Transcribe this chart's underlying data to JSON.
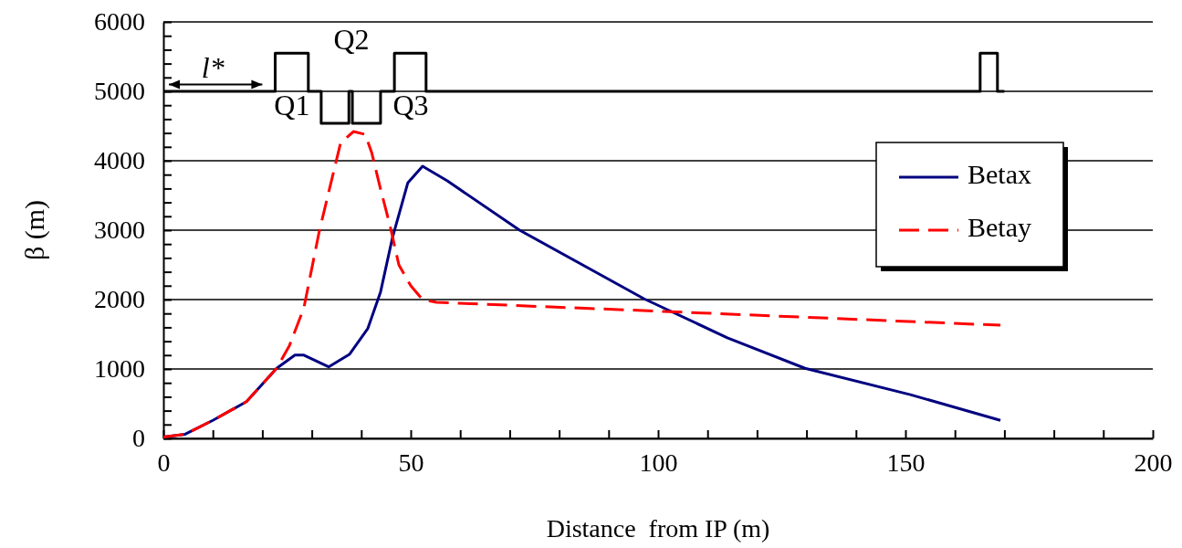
{
  "chart_data": {
    "type": "line",
    "xlabel": "Distance  from IP (m)",
    "ylabel": "β (m)",
    "xlim": [
      0,
      200
    ],
    "ylim": [
      0,
      6000
    ],
    "xticks": [
      0,
      {
        "value": 10,
        "label": null
      },
      {
        "value": 20,
        "label": null
      },
      {
        "value": 30,
        "label": null
      },
      {
        "value": 40,
        "label": null
      },
      50,
      {
        "value": 60,
        "label": null
      },
      {
        "value": 70,
        "label": null
      },
      {
        "value": 80,
        "label": null
      },
      {
        "value": 90,
        "label": null
      },
      100,
      {
        "value": 110,
        "label": null
      },
      {
        "value": 120,
        "label": null
      },
      {
        "value": 130,
        "label": null
      },
      {
        "value": 140,
        "label": null
      },
      150,
      {
        "value": 160,
        "label": null
      },
      {
        "value": 170,
        "label": null
      },
      {
        "value": 180,
        "label": null
      },
      {
        "value": 190,
        "label": null
      },
      200
    ],
    "yticks": [
      0,
      {
        "value": 200,
        "label": null
      },
      {
        "value": 400,
        "label": null
      },
      {
        "value": 600,
        "label": null
      },
      {
        "value": 800,
        "label": null
      },
      1000,
      {
        "value": 1200,
        "label": null
      },
      {
        "value": 1400,
        "label": null
      },
      {
        "value": 1600,
        "label": null
      },
      {
        "value": 1800,
        "label": null
      },
      2000,
      {
        "value": 2200,
        "label": null
      },
      {
        "value": 2400,
        "label": null
      },
      {
        "value": 2600,
        "label": null
      },
      {
        "value": 2800,
        "label": null
      },
      3000,
      {
        "value": 3200,
        "label": null
      },
      {
        "value": 3400,
        "label": null
      },
      {
        "value": 3600,
        "label": null
      },
      {
        "value": 3800,
        "label": null
      },
      4000,
      {
        "value": 4200,
        "label": null
      },
      {
        "value": 4400,
        "label": null
      },
      {
        "value": 4600,
        "label": null
      },
      {
        "value": 4800,
        "label": null
      },
      5000,
      {
        "value": 5200,
        "label": null
      },
      {
        "value": 5400,
        "label": null
      },
      {
        "value": 5600,
        "label": null
      },
      {
        "value": 5800,
        "label": null
      },
      6000
    ],
    "grid": "y",
    "legend": "top right",
    "marker": "none",
    "series": [
      {
        "name": "Betax",
        "color": "#000080",
        "line_style": "solid",
        "x": [
          0,
          4.4,
          10,
          16.8,
          22.9,
          26.6,
          28.4,
          33.4,
          37.6,
          41.3,
          43.9,
          46.3,
          49.4,
          52.4,
          57.4,
          72,
          97.2,
          114,
          129.7,
          151,
          169.2
        ],
        "values": [
          20,
          60,
          260,
          530,
          1010,
          1200,
          1200,
          1030,
          1210,
          1580,
          2110,
          2890,
          3680,
          3920,
          3710,
          3000,
          2010,
          1450,
          1010,
          630,
          260
        ]
      },
      {
        "name": "Betay",
        "color": "#ff0000",
        "line_style": "dashed",
        "x": [
          0,
          4.4,
          10,
          16.8,
          22.9,
          25.5,
          28.4,
          31.5,
          34,
          35.8,
          38.4,
          40.8,
          42.1,
          43.9,
          45.8,
          47.6,
          50,
          52.4,
          55.2,
          101,
          169.2
        ],
        "values": [
          20,
          60,
          260,
          530,
          1010,
          1340,
          1880,
          2980,
          3720,
          4250,
          4420,
          4380,
          4120,
          3590,
          3070,
          2500,
          2200,
          2000,
          1960,
          1830,
          1630
        ]
      },
      {
        "color": "#000000",
        "line_style": "solid",
        "x": [
          0,
          22.6,
          22.6,
          29.3,
          29.3,
          31.9,
          31.9,
          37.5,
          37.5,
          38.2,
          38.2,
          43.9,
          43.9,
          46.7,
          46.7,
          53.1,
          53.1,
          165.1,
          165.1,
          168.6,
          168.6,
          170
        ],
        "values": [
          5000,
          5000,
          5550,
          5550,
          5000,
          5000,
          4540,
          4540,
          5000,
          5000,
          4540,
          4540,
          5000,
          5000,
          5550,
          5550,
          5000,
          5000,
          5550,
          5550,
          5000,
          5000
        ]
      }
    ],
    "annotations": [
      "l*",
      "Q1",
      "Q2",
      "Q3"
    ]
  }
}
